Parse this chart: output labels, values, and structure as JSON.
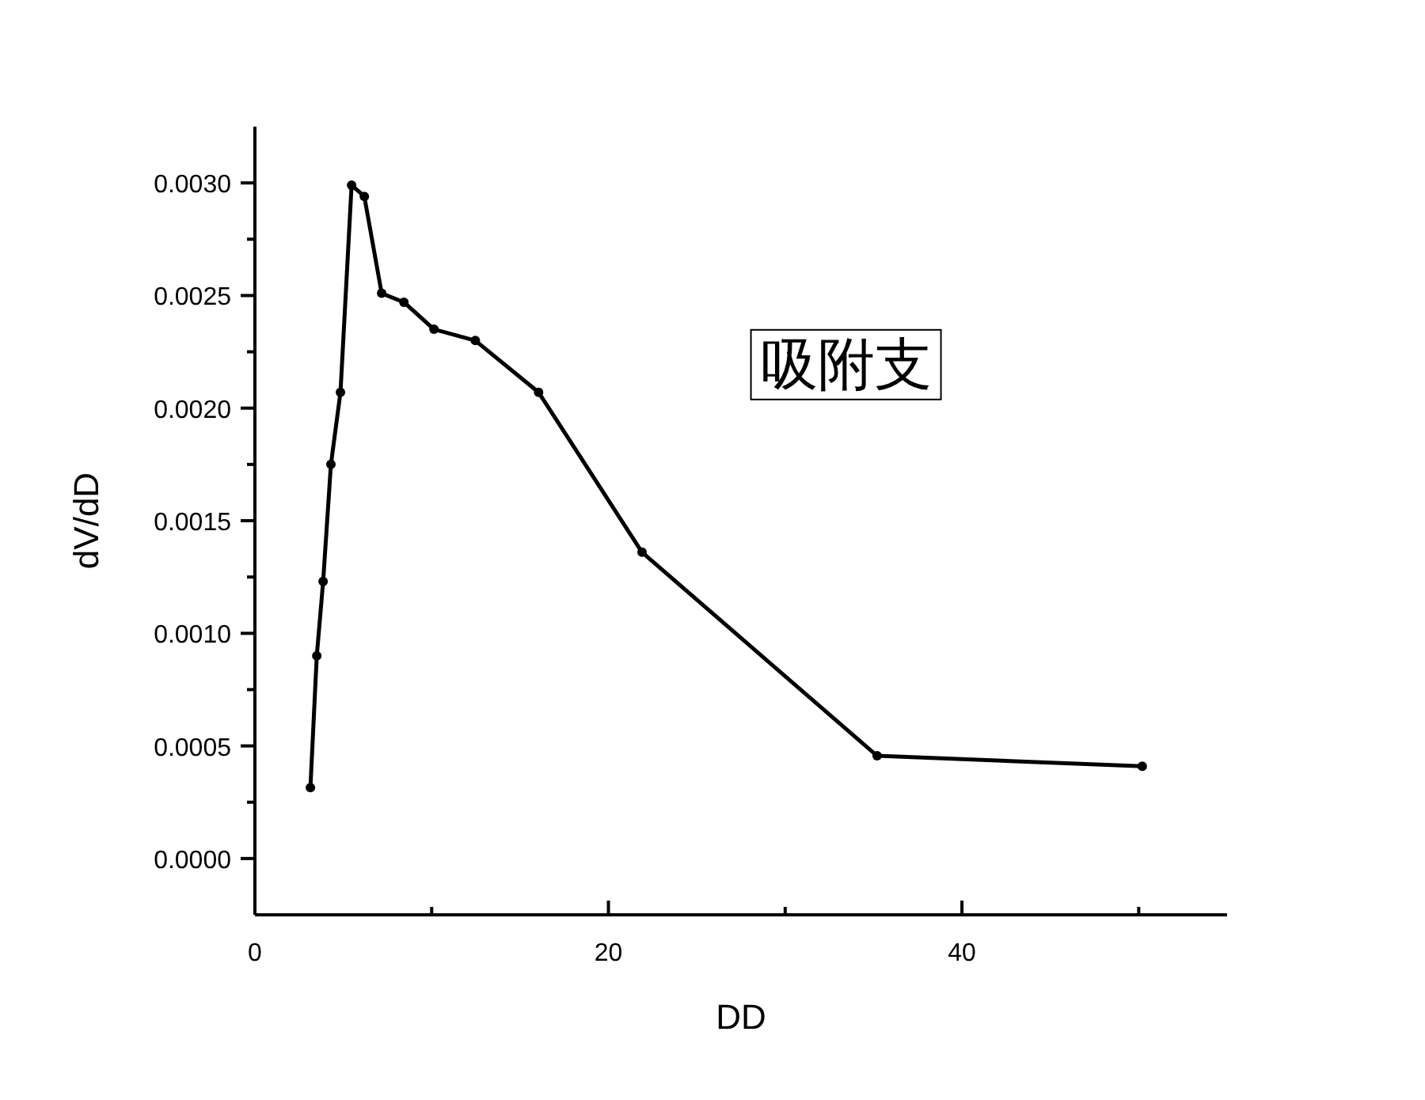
{
  "chart_data": {
    "type": "line",
    "xlabel": "DD",
    "ylabel": "dV/dD",
    "annotations": [
      "吸附支"
    ],
    "x": [
      3.14,
      3.5,
      3.86,
      4.3,
      4.84,
      5.47,
      6.19,
      7.17,
      8.43,
      10.13,
      12.47,
      16.05,
      21.9,
      35.2,
      50.2
    ],
    "series": [
      {
        "color": "#000000",
        "values": [
          0.000315,
          0.0009,
          0.00123,
          0.00175,
          0.00207,
          0.00299,
          0.00294,
          0.00251,
          0.00247,
          0.00235,
          0.0023,
          0.00207,
          0.00136,
          0.000456,
          0.00041
        ]
      }
    ],
    "xlim": [
      0,
      55
    ],
    "xticks": [
      0,
      {
        "value": 10,
        "label": null
      },
      20,
      {
        "value": 30,
        "label": null
      },
      40,
      {
        "value": 50,
        "label": null
      }
    ],
    "ylim": [
      -0.00025,
      0.00325
    ],
    "yticks": [
      {
        "value": 0,
        "label": "0.0000"
      },
      {
        "value": 0.00025,
        "label": null
      },
      {
        "value": 0.0005,
        "label": "0.0005"
      },
      {
        "value": 0.00075,
        "label": null
      },
      {
        "value": 0.001,
        "label": "0.0010"
      },
      {
        "value": 0.00125,
        "label": null
      },
      {
        "value": 0.0015,
        "label": "0.0015"
      },
      {
        "value": 0.00175,
        "label": null
      },
      {
        "value": 0.002,
        "label": "0.0020"
      },
      {
        "value": 0.00225,
        "label": null
      },
      {
        "value": 0.0025,
        "label": "0.0025"
      },
      {
        "value": 0.00275,
        "label": null
      },
      {
        "value": 0.003,
        "label": "0.0030"
      }
    ],
    "marker": "circle",
    "line_style": "solid"
  }
}
